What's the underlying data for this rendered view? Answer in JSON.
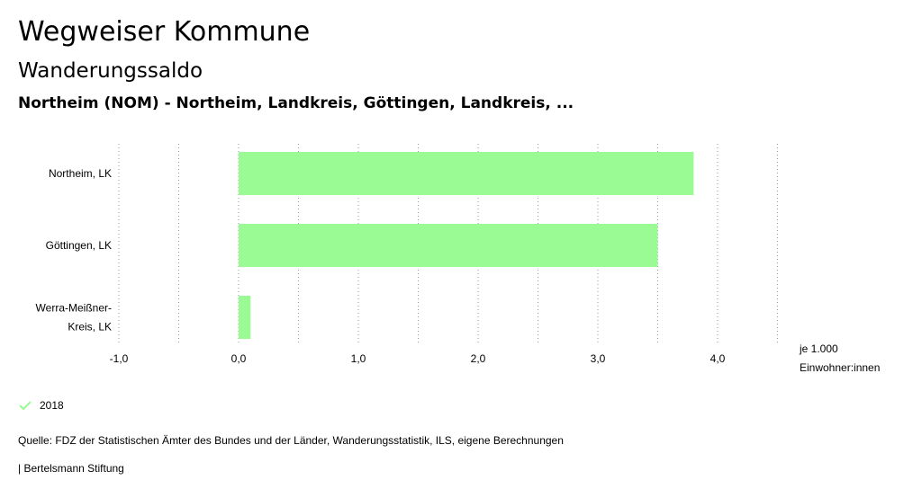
{
  "header": {
    "app_title": "Wegweiser Kommune",
    "subtitle": "Wanderungssaldo",
    "region": "Northeim (NOM) - Northeim, Landkreis, Göttingen, Landkreis, ..."
  },
  "chart_data": {
    "type": "bar",
    "orientation": "horizontal",
    "categories": [
      [
        "Northeim, LK"
      ],
      [
        "Göttingen, LK"
      ],
      [
        "Werra-Meißner-",
        "Kreis, LK"
      ]
    ],
    "series": [
      {
        "name": "2018",
        "values": [
          3.8,
          3.5,
          0.1
        ],
        "color": "#9afa93"
      }
    ],
    "xlim": [
      -1.0,
      4.5
    ],
    "xticks": [
      "-1,0",
      "0,0",
      "1,0",
      "2,0",
      "3,0",
      "4,0"
    ],
    "xtick_values": [
      -1,
      0,
      1,
      2,
      3,
      4
    ],
    "unit_label": [
      "je 1.000",
      "Einwohner:innen"
    ],
    "grid": "vertical-dotted"
  },
  "legend": {
    "label": "2018",
    "icon": "check-icon",
    "color": "#9afa93"
  },
  "source": "Quelle: FDZ der Statistischen Ämter des Bundes und der Länder, Wanderungsstatistik, ILS, eigene Berechnungen",
  "footer": "| Bertelsmann Stiftung"
}
